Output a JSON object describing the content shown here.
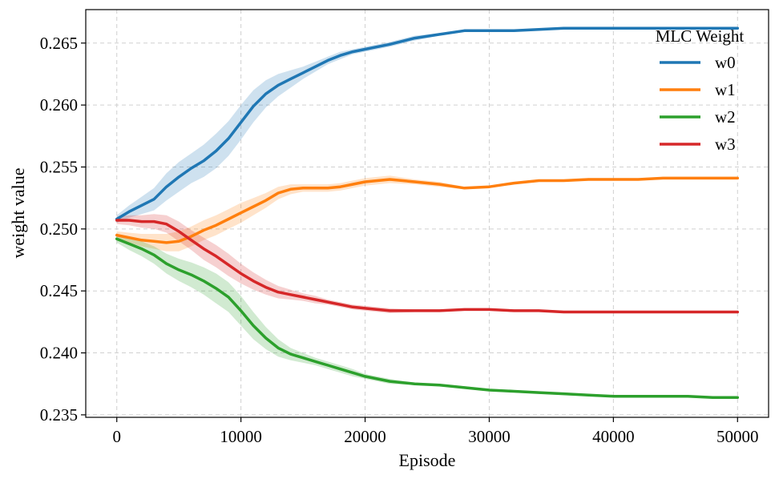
{
  "chart_data": {
    "type": "line",
    "xlabel": "Episode",
    "ylabel": "weight value",
    "xlim": [
      -2500,
      52500
    ],
    "ylim": [
      0.2348,
      0.2677
    ],
    "xticks": [
      0,
      10000,
      20000,
      30000,
      40000,
      50000
    ],
    "xtick_labels": [
      "0",
      "10000",
      "20000",
      "30000",
      "40000",
      "50000"
    ],
    "yticks": [
      0.235,
      0.24,
      0.245,
      0.25,
      0.255,
      0.26,
      0.265
    ],
    "ytick_labels": [
      "0.235",
      "0.240",
      "0.245",
      "0.250",
      "0.255",
      "0.260",
      "0.265"
    ],
    "grid": true,
    "legend": {
      "title": "MLC Weight",
      "position": "top-right"
    },
    "x": [
      0,
      1000,
      2000,
      3000,
      4000,
      5000,
      6000,
      7000,
      8000,
      9000,
      10000,
      11000,
      12000,
      13000,
      14000,
      15000,
      16000,
      17000,
      18000,
      19000,
      20000,
      22000,
      24000,
      26000,
      28000,
      30000,
      32000,
      34000,
      36000,
      38000,
      40000,
      42000,
      44000,
      46000,
      48000,
      50000
    ],
    "series": [
      {
        "name": "w0",
        "color": "#1f77b4",
        "values": [
          0.2508,
          0.2514,
          0.2519,
          0.2524,
          0.2534,
          0.2542,
          0.2549,
          0.2555,
          0.2563,
          0.2573,
          0.2586,
          0.2599,
          0.2609,
          0.2616,
          0.2621,
          0.2626,
          0.2631,
          0.2636,
          0.264,
          0.2643,
          0.2645,
          0.2649,
          0.2654,
          0.2657,
          0.266,
          0.266,
          0.266,
          0.2661,
          0.2662,
          0.2662,
          0.2662,
          0.2662,
          0.2662,
          0.2662,
          0.2662,
          0.2662
        ],
        "band": [
          0.0003,
          0.0005,
          0.0007,
          0.0009,
          0.0011,
          0.0012,
          0.0012,
          0.0013,
          0.0014,
          0.0014,
          0.0014,
          0.0013,
          0.0011,
          0.0009,
          0.0007,
          0.0005,
          0.0004,
          0.0003,
          0.0003,
          0.0002,
          0.0002,
          0.0002,
          0.0002,
          0.0001,
          0.0001,
          0.0001,
          0.0001,
          0.0001,
          0.0001,
          0.0001,
          0.0001,
          0.0001,
          0.0001,
          0.0001,
          0.0001,
          0.0001
        ]
      },
      {
        "name": "w1",
        "color": "#ff7f0e",
        "values": [
          0.2495,
          0.2493,
          0.2491,
          0.249,
          0.2489,
          0.249,
          0.2494,
          0.2499,
          0.2503,
          0.2508,
          0.2513,
          0.2518,
          0.2523,
          0.2529,
          0.2532,
          0.2533,
          0.2533,
          0.2533,
          0.2534,
          0.2536,
          0.2538,
          0.254,
          0.2538,
          0.2536,
          0.2533,
          0.2534,
          0.2537,
          0.2539,
          0.2539,
          0.254,
          0.254,
          0.254,
          0.2541,
          0.2541,
          0.2541,
          0.2541
        ],
        "band": [
          0.0003,
          0.0004,
          0.0005,
          0.0006,
          0.0007,
          0.0008,
          0.0008,
          0.0008,
          0.0008,
          0.0008,
          0.0008,
          0.0007,
          0.0006,
          0.0005,
          0.0004,
          0.0003,
          0.0003,
          0.0003,
          0.0003,
          0.0003,
          0.0003,
          0.0003,
          0.0002,
          0.0002,
          0.0001,
          0.0001,
          0.0001,
          0.0001,
          0.0001,
          0.0001,
          0.0001,
          0.0001,
          0.0001,
          0.0001,
          0.0001,
          0.0001
        ]
      },
      {
        "name": "w2",
        "color": "#2ca02c",
        "values": [
          0.2492,
          0.2488,
          0.2484,
          0.2479,
          0.2472,
          0.2467,
          0.2463,
          0.2458,
          0.2452,
          0.2445,
          0.2434,
          0.2422,
          0.2412,
          0.2404,
          0.2399,
          0.2396,
          0.2393,
          0.239,
          0.2387,
          0.2384,
          0.2381,
          0.2377,
          0.2375,
          0.2374,
          0.2372,
          0.237,
          0.2369,
          0.2368,
          0.2367,
          0.2366,
          0.2365,
          0.2365,
          0.2365,
          0.2365,
          0.2364,
          0.2364
        ],
        "band": [
          0.0003,
          0.0005,
          0.0006,
          0.0007,
          0.0008,
          0.0009,
          0.001,
          0.0011,
          0.0012,
          0.0012,
          0.0012,
          0.0011,
          0.0009,
          0.0007,
          0.0005,
          0.0004,
          0.0003,
          0.0003,
          0.0003,
          0.0003,
          0.0002,
          0.0002,
          0.0001,
          0.0001,
          0.0001,
          0.0001,
          0.0001,
          0.0001,
          0.0001,
          0.0001,
          0.0001,
          0.0001,
          0.0001,
          0.0001,
          0.0001,
          0.0001
        ]
      },
      {
        "name": "w3",
        "color": "#d62728",
        "values": [
          0.2507,
          0.2507,
          0.2506,
          0.2506,
          0.2504,
          0.2498,
          0.2491,
          0.2484,
          0.2478,
          0.2471,
          0.2464,
          0.2458,
          0.2453,
          0.2449,
          0.2447,
          0.2445,
          0.2443,
          0.2441,
          0.2439,
          0.2437,
          0.2436,
          0.2434,
          0.2434,
          0.2434,
          0.2435,
          0.2435,
          0.2434,
          0.2434,
          0.2433,
          0.2433,
          0.2433,
          0.2433,
          0.2433,
          0.2433,
          0.2433,
          0.2433
        ],
        "band": [
          0.0003,
          0.0004,
          0.0005,
          0.0006,
          0.0007,
          0.0008,
          0.0008,
          0.0009,
          0.0009,
          0.0009,
          0.0008,
          0.0007,
          0.0006,
          0.0005,
          0.0004,
          0.0003,
          0.0003,
          0.0002,
          0.0002,
          0.0002,
          0.0002,
          0.0002,
          0.0001,
          0.0001,
          0.0001,
          0.0001,
          0.0001,
          0.0001,
          0.0001,
          0.0001,
          0.0001,
          0.0001,
          0.0001,
          0.0001,
          0.0001,
          0.0001
        ]
      }
    ]
  }
}
